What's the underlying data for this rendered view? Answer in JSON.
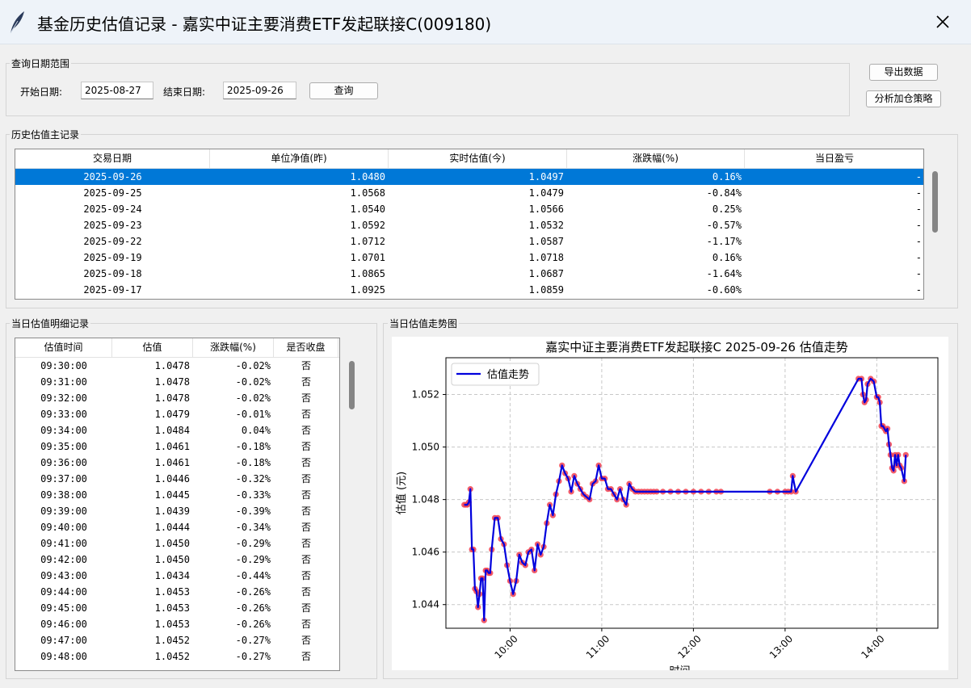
{
  "window": {
    "title": "基金历史估值记录 - 嘉实中证主要消费ETF发起联接C(009180)"
  },
  "query": {
    "group_label": "查询日期范围",
    "start_label": "开始日期:",
    "start_value": "2025-08-27",
    "end_label": "结束日期:",
    "end_value": "2025-09-26",
    "query_button": "查询",
    "export_button": "导出数据",
    "analyze_button": "分析加仓策略"
  },
  "history": {
    "group_label": "历史估值主记录",
    "columns": [
      "交易日期",
      "单位净值(昨)",
      "实时估值(今)",
      "涨跌幅(%)",
      "当日盈亏"
    ],
    "rows": [
      [
        "2025-09-26",
        "1.0480",
        "1.0497",
        "0.16%",
        "-"
      ],
      [
        "2025-09-25",
        "1.0568",
        "1.0479",
        "-0.84%",
        "-"
      ],
      [
        "2025-09-24",
        "1.0540",
        "1.0566",
        "0.25%",
        "-"
      ],
      [
        "2025-09-23",
        "1.0592",
        "1.0532",
        "-0.57%",
        "-"
      ],
      [
        "2025-09-22",
        "1.0712",
        "1.0587",
        "-1.17%",
        "-"
      ],
      [
        "2025-09-19",
        "1.0701",
        "1.0718",
        "0.16%",
        "-"
      ],
      [
        "2025-09-18",
        "1.0865",
        "1.0687",
        "-1.64%",
        "-"
      ],
      [
        "2025-09-17",
        "1.0925",
        "1.0859",
        "-0.60%",
        "-"
      ]
    ]
  },
  "detail": {
    "group_label": "当日估值明细记录",
    "columns": [
      "估值时间",
      "估值",
      "涨跌幅(%)",
      "是否收盘"
    ],
    "rows": [
      [
        "09:30:00",
        "1.0478",
        "-0.02%",
        "否"
      ],
      [
        "09:31:00",
        "1.0478",
        "-0.02%",
        "否"
      ],
      [
        "09:32:00",
        "1.0478",
        "-0.02%",
        "否"
      ],
      [
        "09:33:00",
        "1.0479",
        "-0.01%",
        "否"
      ],
      [
        "09:34:00",
        "1.0484",
        "0.04%",
        "否"
      ],
      [
        "09:35:00",
        "1.0461",
        "-0.18%",
        "否"
      ],
      [
        "09:36:00",
        "1.0461",
        "-0.18%",
        "否"
      ],
      [
        "09:37:00",
        "1.0446",
        "-0.32%",
        "否"
      ],
      [
        "09:38:00",
        "1.0445",
        "-0.33%",
        "否"
      ],
      [
        "09:39:00",
        "1.0439",
        "-0.39%",
        "否"
      ],
      [
        "09:40:00",
        "1.0444",
        "-0.34%",
        "否"
      ],
      [
        "09:41:00",
        "1.0450",
        "-0.29%",
        "否"
      ],
      [
        "09:42:00",
        "1.0450",
        "-0.29%",
        "否"
      ],
      [
        "09:43:00",
        "1.0434",
        "-0.44%",
        "否"
      ],
      [
        "09:44:00",
        "1.0453",
        "-0.26%",
        "否"
      ],
      [
        "09:45:00",
        "1.0453",
        "-0.26%",
        "否"
      ],
      [
        "09:46:00",
        "1.0453",
        "-0.26%",
        "否"
      ],
      [
        "09:47:00",
        "1.0452",
        "-0.27%",
        "否"
      ],
      [
        "09:48:00",
        "1.0452",
        "-0.27%",
        "否"
      ]
    ]
  },
  "chart_panel": {
    "group_label": "当日估值走势图"
  },
  "chart_data": {
    "type": "line",
    "title": "嘉实中证主要消费ETF发起联接C 2025-09-26 估值走势",
    "xlabel": "时间",
    "ylabel": "估值 (元)",
    "legend": "top-left",
    "grid": true,
    "line_color": "#0000dd",
    "marker_color": "#f04050",
    "xlim": [
      "09:18",
      "14:40"
    ],
    "ylim": [
      1.0431,
      1.0534
    ],
    "x_ticks": [
      "10:00",
      "11:00",
      "12:00",
      "13:00",
      "14:00"
    ],
    "y_ticks": [
      "1.044",
      "1.046",
      "1.048",
      "1.050",
      "1.052"
    ],
    "series": [
      {
        "name": "估值走势",
        "x": [
          "09:30",
          "09:31",
          "09:32",
          "09:33",
          "09:34",
          "09:35",
          "09:36",
          "09:37",
          "09:38",
          "09:39",
          "09:40",
          "09:41",
          "09:42",
          "09:43",
          "09:44",
          "09:45",
          "09:46",
          "09:47",
          "09:48",
          "09:50",
          "09:52",
          "09:54",
          "09:56",
          "09:58",
          "10:00",
          "10:02",
          "10:04",
          "10:06",
          "10:08",
          "10:10",
          "10:12",
          "10:14",
          "10:16",
          "10:18",
          "10:20",
          "10:22",
          "10:24",
          "10:26",
          "10:28",
          "10:30",
          "10:32",
          "10:34",
          "10:36",
          "10:38",
          "10:40",
          "10:42",
          "10:44",
          "10:46",
          "10:48",
          "10:50",
          "10:52",
          "10:54",
          "10:56",
          "10:58",
          "11:00",
          "11:02",
          "11:04",
          "11:06",
          "11:08",
          "11:10",
          "11:12",
          "11:14",
          "11:16",
          "11:18",
          "11:20",
          "11:22",
          "11:24",
          "11:26",
          "11:28",
          "11:30",
          "11:32",
          "11:34",
          "11:36",
          "11:40",
          "11:45",
          "11:50",
          "11:55",
          "12:00",
          "12:05",
          "12:10",
          "12:15",
          "12:18",
          "12:50",
          "12:55",
          "13:00",
          "13:02",
          "13:04",
          "13:05",
          "13:07",
          "13:48",
          "13:50",
          "13:51",
          "13:52",
          "13:53",
          "13:54",
          "13:56",
          "13:58",
          "14:00",
          "14:01",
          "14:02",
          "14:03",
          "14:04",
          "14:05",
          "14:06",
          "14:07",
          "14:08",
          "14:09",
          "14:10",
          "14:11",
          "14:12",
          "14:13",
          "14:14",
          "14:15",
          "14:16",
          "14:18",
          "14:19"
        ],
        "values": [
          1.0478,
          1.0478,
          1.0478,
          1.0479,
          1.0484,
          1.0461,
          1.0461,
          1.0446,
          1.0445,
          1.0439,
          1.0444,
          1.045,
          1.045,
          1.0434,
          1.0453,
          1.0453,
          1.0452,
          1.0452,
          1.0461,
          1.0473,
          1.0473,
          1.0465,
          1.0463,
          1.0455,
          1.0449,
          1.0444,
          1.0449,
          1.0459,
          1.0456,
          1.0455,
          1.046,
          1.0461,
          1.0453,
          1.0463,
          1.0459,
          1.0462,
          1.0471,
          1.0478,
          1.0474,
          1.0482,
          1.0487,
          1.0493,
          1.049,
          1.0488,
          1.0483,
          1.0489,
          1.0486,
          1.0484,
          1.0482,
          1.0481,
          1.048,
          1.0486,
          1.0487,
          1.0493,
          1.0488,
          1.0488,
          1.0484,
          1.0484,
          1.0482,
          1.048,
          1.0484,
          1.048,
          1.0478,
          1.0486,
          1.0484,
          1.0483,
          1.0483,
          1.0483,
          1.0483,
          1.0483,
          1.0483,
          1.0483,
          1.0483,
          1.0483,
          1.0483,
          1.0483,
          1.0483,
          1.0483,
          1.0483,
          1.0483,
          1.0483,
          1.0483,
          1.0483,
          1.0483,
          1.0483,
          1.0483,
          1.0483,
          1.0489,
          1.0483,
          1.0526,
          1.0526,
          1.052,
          1.0517,
          1.0518,
          1.0524,
          1.0526,
          1.0525,
          1.0519,
          1.0519,
          1.0517,
          1.0508,
          1.0508,
          1.0507,
          1.0506,
          1.0507,
          1.0501,
          1.0497,
          1.0492,
          1.0491,
          1.0497,
          1.0493,
          1.0497,
          1.0493,
          1.0492,
          1.0487,
          1.0497
        ]
      }
    ]
  }
}
